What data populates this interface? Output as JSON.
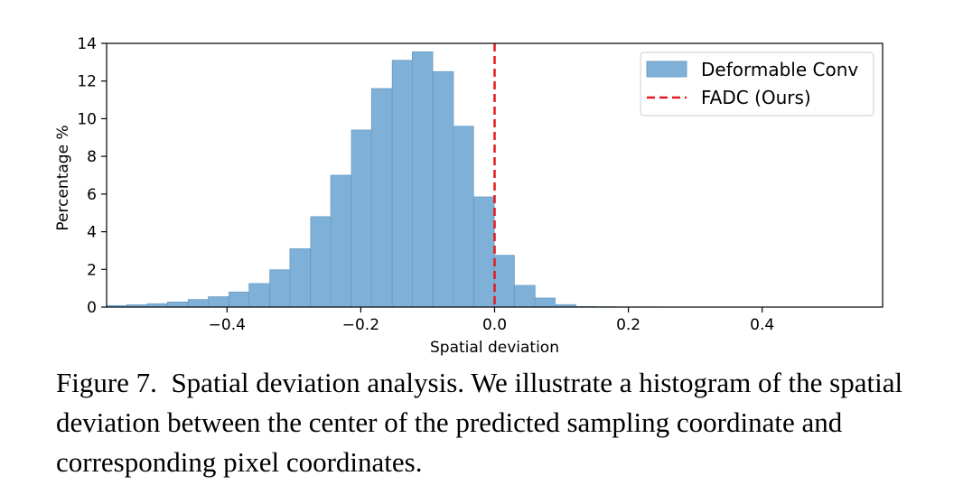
{
  "chart_data": {
    "type": "bar",
    "title": "",
    "xlabel": "Spatial deviation",
    "ylabel": "Percentage %",
    "xlim": [
      -0.58,
      0.58
    ],
    "ylim": [
      0,
      14
    ],
    "xticks": [
      -0.4,
      -0.2,
      0.0,
      0.2,
      0.4
    ],
    "xtick_labels": [
      "−0.4",
      "−0.2",
      "0.0",
      "0.2",
      "0.4"
    ],
    "yticks": [
      0,
      2,
      4,
      6,
      8,
      10,
      12,
      14
    ],
    "ytick_labels": [
      "0",
      "2",
      "4",
      "6",
      "8",
      "10",
      "12",
      "14"
    ],
    "bin_width": 0.0305,
    "bins": [
      {
        "x0": -0.58,
        "value": 0.08
      },
      {
        "x0": -0.55,
        "value": 0.12
      },
      {
        "x0": -0.519,
        "value": 0.18
      },
      {
        "x0": -0.489,
        "value": 0.27
      },
      {
        "x0": -0.458,
        "value": 0.4
      },
      {
        "x0": -0.428,
        "value": 0.55
      },
      {
        "x0": -0.397,
        "value": 0.8
      },
      {
        "x0": -0.367,
        "value": 1.25
      },
      {
        "x0": -0.336,
        "value": 1.98
      },
      {
        "x0": -0.306,
        "value": 3.1
      },
      {
        "x0": -0.275,
        "value": 4.8
      },
      {
        "x0": -0.245,
        "value": 7.0
      },
      {
        "x0": -0.214,
        "value": 9.4
      },
      {
        "x0": -0.184,
        "value": 11.6
      },
      {
        "x0": -0.153,
        "value": 13.1
      },
      {
        "x0": -0.123,
        "value": 13.55
      },
      {
        "x0": -0.092,
        "value": 12.5
      },
      {
        "x0": -0.062,
        "value": 9.6
      },
      {
        "x0": -0.031,
        "value": 5.85
      },
      {
        "x0": -0.001,
        "value": 2.75
      },
      {
        "x0": 0.03,
        "value": 1.15
      },
      {
        "x0": 0.06,
        "value": 0.48
      },
      {
        "x0": 0.091,
        "value": 0.13
      },
      {
        "x0": 0.121,
        "value": 0.03
      },
      {
        "x0": 0.152,
        "value": 0.02
      },
      {
        "x0": 0.182,
        "value": 0.01
      },
      {
        "x0": 0.213,
        "value": 0.01
      }
    ],
    "vline": {
      "x": 0.0,
      "label": "FADC (Ours)",
      "color": "#e31a1c",
      "style": "dashed"
    },
    "series": [
      {
        "name": "Deformable Conv",
        "color": "#7fb1d8",
        "edge_color": "#6a9cc4"
      },
      {
        "name": "FADC (Ours)",
        "color": "#e31a1c"
      }
    ],
    "legend_position": "top-right",
    "grid": false
  },
  "caption": {
    "label": "Figure 7.",
    "text": "Spatial deviation analysis. We illustrate a histogram of the spatial deviation between the center of the predicted sampling coordinate and corresponding pixel coordinates."
  }
}
